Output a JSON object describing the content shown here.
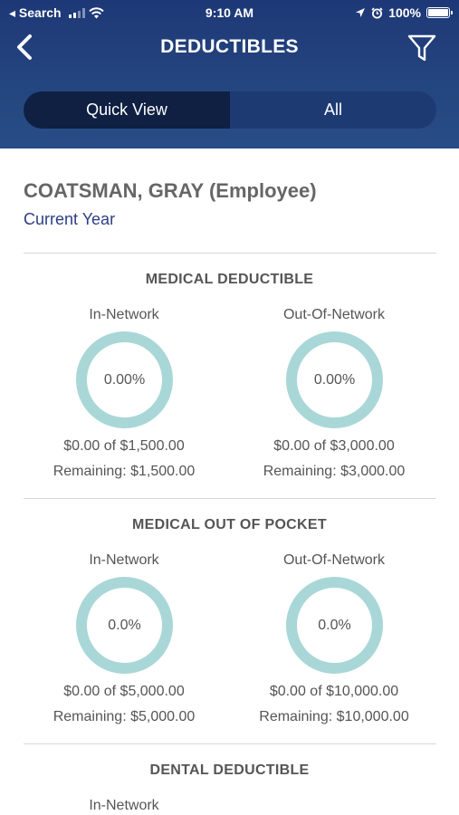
{
  "status_bar": {
    "back_app": "◂ Search",
    "time": "9:10 AM",
    "battery": "100%"
  },
  "nav": {
    "title": "DEDUCTIBLES",
    "back_icon": "chevron-left-icon",
    "filter_icon": "filter-icon"
  },
  "tabs": [
    {
      "label": "Quick View",
      "selected": true
    },
    {
      "label": "All",
      "selected": false
    }
  ],
  "member": {
    "name": "COATSMAN, GRAY (Employee)",
    "period": "Current Year"
  },
  "sections": [
    {
      "title": "MEDICAL DEDUCTIBLE",
      "columns": [
        {
          "label": "In-Network",
          "percent": "0.00%",
          "amount": "$0.00 of $1,500.00",
          "remaining": "Remaining: $1,500.00"
        },
        {
          "label": "Out-Of-Network",
          "percent": "0.00%",
          "amount": "$0.00 of $3,000.00",
          "remaining": "Remaining: $3,000.00"
        }
      ]
    },
    {
      "title": "MEDICAL OUT OF POCKET",
      "columns": [
        {
          "label": "In-Network",
          "percent": "0.0%",
          "amount": "$0.00 of $5,000.00",
          "remaining": "Remaining: $5,000.00"
        },
        {
          "label": "Out-Of-Network",
          "percent": "0.0%",
          "amount": "$0.00 of $10,000.00",
          "remaining": "Remaining: $10,000.00"
        }
      ]
    },
    {
      "title": "DENTAL DEDUCTIBLE",
      "columns": [
        {
          "label": "In-Network"
        }
      ]
    }
  ],
  "colors": {
    "header": "#24467f",
    "ring": "#a9d7d7",
    "accent_text": "#2d3f83"
  }
}
